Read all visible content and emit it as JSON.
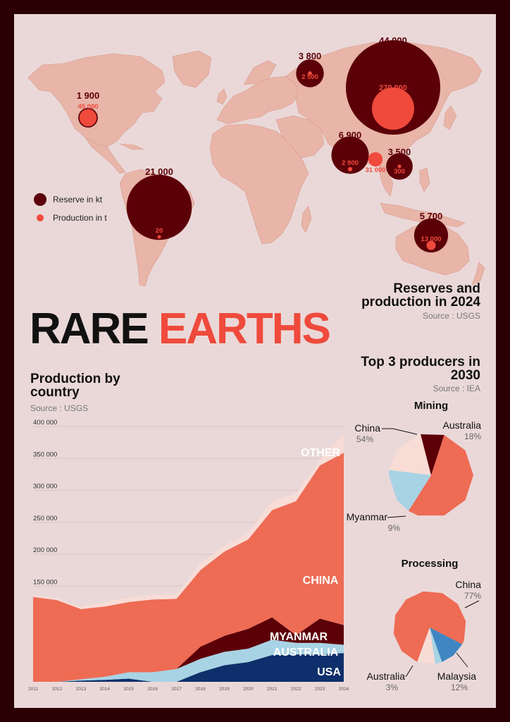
{
  "colors": {
    "reserve": "#5c0008",
    "production": "#ef4a3c",
    "land": "#e8b5a8",
    "background": "#ead8d8",
    "china": "#ee6b54",
    "myanmar": "#5c0008",
    "australia": "#a8d3e4",
    "usa": "#0e2f6b",
    "other": "#f8dcd6",
    "malaysia": "#3f86c2"
  },
  "title": {
    "part1": "RARE",
    "part2": "EARTHS"
  },
  "map": {
    "title_line1": "Reserves and",
    "title_line2": "production in 2024",
    "source": "Source : USGS",
    "legend": {
      "reserve": "Reserve in kt",
      "production": "Production in t"
    },
    "countries": [
      {
        "name": "USA",
        "reserve_kt": 1900,
        "production_t": 45000,
        "reserve_label": "1 900",
        "production_label": "45 000"
      },
      {
        "name": "Brazil",
        "reserve_kt": 21000,
        "production_t": 20,
        "reserve_label": "21 000",
        "production_label": "20"
      },
      {
        "name": "Russia",
        "reserve_kt": 3800,
        "production_t": 2500,
        "reserve_label": "3 800",
        "production_label": "2 500"
      },
      {
        "name": "China",
        "reserve_kt": 44000,
        "production_t": 270000,
        "reserve_label": "44 000",
        "production_label": "270 000"
      },
      {
        "name": "India",
        "reserve_kt": 6900,
        "production_t": 2900,
        "reserve_label": "6 900",
        "production_label": "2 900"
      },
      {
        "name": "Myanmar",
        "reserve_kt": null,
        "production_t": 31000,
        "reserve_label": "",
        "production_label": "31 000"
      },
      {
        "name": "Vietnam",
        "reserve_kt": 3500,
        "production_t": 300,
        "reserve_label": "3 500",
        "production_label": "300"
      },
      {
        "name": "Australia",
        "reserve_kt": 5700,
        "production_t": 13000,
        "reserve_label": "5 700",
        "production_label": "13 000"
      }
    ]
  },
  "chart_data": [
    {
      "type": "area",
      "title": "Production by country",
      "source": "Source : USGS",
      "x": [
        2011,
        2012,
        2013,
        2014,
        2015,
        2016,
        2017,
        2018,
        2019,
        2020,
        2021,
        2022,
        2023,
        2024
      ],
      "x_tick_labels": [
        "2011",
        "2012",
        "2013",
        "2014",
        "2015",
        "2016",
        "2017",
        "2018",
        "2019",
        "2020",
        "2021",
        "2022",
        "2023",
        "2024"
      ],
      "y_tick_values": [
        150000,
        200000,
        250000,
        300000,
        350000,
        400000
      ],
      "y_tick_labels": [
        "150 000",
        "200 000",
        "250 000",
        "300 000",
        "350 000",
        "400 000"
      ],
      "ylim": [
        0,
        400000
      ],
      "stacked": true,
      "series": [
        {
          "name": "USA",
          "values": [
            0,
            0,
            2000,
            3000,
            5000,
            0,
            0,
            15000,
            26000,
            31000,
            42000,
            43000,
            43000,
            45000
          ]
        },
        {
          "name": "AUSTRALIA",
          "values": [
            0,
            0,
            2000,
            5000,
            10000,
            15000,
            20000,
            21000,
            21000,
            21000,
            24000,
            18000,
            18000,
            13000
          ]
        },
        {
          "name": "MYANMAR",
          "values": [
            0,
            0,
            0,
            0,
            0,
            0,
            0,
            19000,
            25000,
            31000,
            35000,
            12000,
            38000,
            31000
          ]
        },
        {
          "name": "CHINA",
          "values": [
            133000,
            128000,
            110000,
            110000,
            110000,
            114000,
            110000,
            120000,
            132000,
            140000,
            168000,
            210000,
            240000,
            270000
          ]
        },
        {
          "name": "OTHER",
          "values": [
            3000,
            3000,
            3000,
            7000,
            7000,
            7000,
            7000,
            10000,
            9000,
            10000,
            14000,
            12000,
            8000,
            29000
          ]
        }
      ]
    },
    {
      "type": "pie",
      "group_title": "Top 3 producers in 2030",
      "group_source": "Source : IEA",
      "title": "Mining",
      "labels": [
        "China",
        "Australia",
        "Other",
        "Myanmar"
      ],
      "values": [
        54,
        18,
        19,
        9
      ],
      "display_labels": [
        {
          "name": "China",
          "pct": "54%"
        },
        {
          "name": "Australia",
          "pct": "18%"
        },
        {
          "name": "Myanmar",
          "pct": "9%"
        }
      ]
    },
    {
      "type": "pie",
      "title": "Processing",
      "labels": [
        "China",
        "Malaysia",
        "Australia",
        "Other"
      ],
      "values": [
        77,
        12,
        3,
        8
      ],
      "display_labels": [
        {
          "name": "China",
          "pct": "77%"
        },
        {
          "name": "Malaysia",
          "pct": "12%"
        },
        {
          "name": "Australia",
          "pct": "3%"
        }
      ]
    }
  ]
}
